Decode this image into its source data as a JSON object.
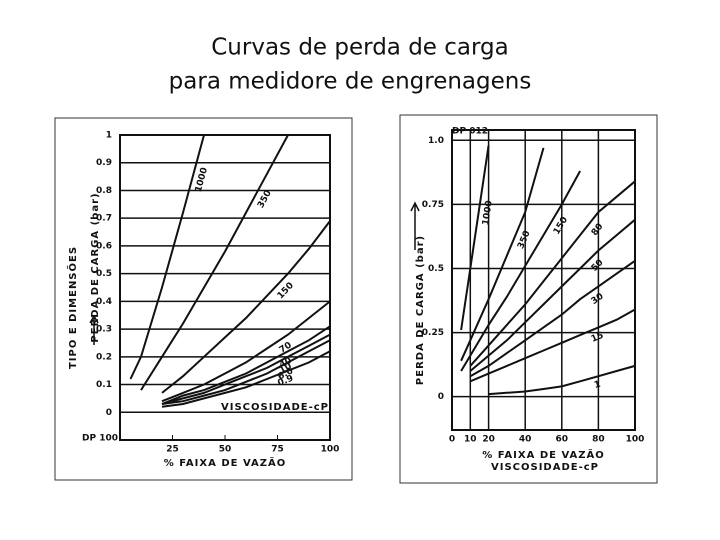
{
  "slide": {
    "title_lines": [
      "Curvas de perda de carga",
      "para medidore de engrenagens"
    ]
  },
  "chart_data": [
    {
      "type": "line",
      "title": "DP 100",
      "side_label": "TIPO E DIMENSÕES",
      "ylabel": "PERDA DE CARGA (bar)",
      "xlabel": "% FAIXA DE VAZÃO",
      "note": "VISCOSIDADE-cP",
      "color": "#111111",
      "grid": true,
      "xlim": [
        0,
        100
      ],
      "xticks": [
        25,
        50,
        75,
        100
      ],
      "ylim": [
        -0.1,
        1
      ],
      "yticks": [
        0,
        0.1,
        0.2,
        0.3,
        0.4,
        0.5,
        0.6,
        0.7,
        0.8,
        0.9,
        1
      ],
      "x": [
        5,
        10,
        20,
        30,
        40,
        50,
        60,
        70,
        80,
        90,
        100
      ],
      "series": [
        {
          "name": "1000",
          "values": [
            0.12,
            0.2,
            0.45,
            0.72,
            1.0,
            null,
            null,
            null,
            null,
            null,
            null
          ]
        },
        {
          "name": "350",
          "values": [
            null,
            0.08,
            0.2,
            0.32,
            0.45,
            0.58,
            0.72,
            0.86,
            1.0,
            null,
            null
          ]
        },
        {
          "name": "150",
          "values": [
            null,
            null,
            0.07,
            0.13,
            0.2,
            0.27,
            0.34,
            0.42,
            0.5,
            0.59,
            0.69
          ]
        },
        {
          "name": "70",
          "values": [
            null,
            null,
            0.04,
            0.07,
            0.1,
            0.14,
            0.18,
            0.23,
            0.28,
            0.34,
            0.4
          ]
        },
        {
          "name": "40",
          "values": [
            null,
            null,
            0.03,
            0.06,
            0.08,
            0.11,
            0.14,
            0.18,
            0.22,
            0.26,
            0.31
          ]
        },
        {
          "name": "10",
          "values": [
            null,
            null,
            0.03,
            0.05,
            0.07,
            0.1,
            0.13,
            0.16,
            0.2,
            0.24,
            0.28
          ]
        },
        {
          "name": "6.0",
          "values": [
            null,
            null,
            0.03,
            0.04,
            0.06,
            0.08,
            0.11,
            0.14,
            0.18,
            0.22,
            0.26
          ]
        },
        {
          "name": "0.9",
          "values": [
            null,
            null,
            0.02,
            0.03,
            0.05,
            0.07,
            0.09,
            0.12,
            0.15,
            0.18,
            0.22
          ]
        }
      ]
    },
    {
      "type": "line",
      "title": "DP 012",
      "ylabel": "PERDA DE CARGA (bar)",
      "xlabel": "% FAIXA DE VAZÃO",
      "note": "VISCOSIDADE-cP",
      "color": "#111111",
      "grid": true,
      "xlim": [
        0,
        100
      ],
      "xticks": [
        0,
        10,
        20,
        40,
        60,
        80,
        100
      ],
      "ylim": [
        -0.13,
        1.04
      ],
      "yticks": [
        0,
        0.25,
        0.5,
        0.75,
        {
          "value": 1,
          "label": "1.0"
        }
      ],
      "x": [
        5,
        10,
        20,
        30,
        40,
        50,
        60,
        70,
        80,
        90,
        100
      ],
      "series": [
        {
          "name": "1000",
          "values": [
            0.26,
            0.5,
            0.98,
            null,
            null,
            null,
            null,
            null,
            null,
            null,
            null
          ]
        },
        {
          "name": "350",
          "values": [
            0.14,
            0.22,
            0.38,
            0.55,
            0.72,
            0.97,
            null,
            null,
            null,
            null,
            null
          ]
        },
        {
          "name": "150",
          "values": [
            0.1,
            0.16,
            0.28,
            0.39,
            0.51,
            0.63,
            0.75,
            0.88,
            null,
            null,
            null
          ]
        },
        {
          "name": "80",
          "values": [
            null,
            0.12,
            0.2,
            0.28,
            0.36,
            0.45,
            0.54,
            0.63,
            0.72,
            0.78,
            0.84
          ]
        },
        {
          "name": "50",
          "values": [
            null,
            0.1,
            0.16,
            0.22,
            0.29,
            0.36,
            0.43,
            0.5,
            0.57,
            0.63,
            0.69
          ]
        },
        {
          "name": "30",
          "values": [
            null,
            0.08,
            0.12,
            0.17,
            0.22,
            0.27,
            0.32,
            0.38,
            0.43,
            0.48,
            0.53
          ]
        },
        {
          "name": "15",
          "values": [
            null,
            0.06,
            0.09,
            0.12,
            0.15,
            0.18,
            0.21,
            0.24,
            0.27,
            0.3,
            0.34
          ]
        },
        {
          "name": "1",
          "values": [
            null,
            null,
            0.01,
            0.015,
            0.02,
            0.03,
            0.04,
            0.06,
            0.08,
            0.1,
            0.12
          ]
        }
      ]
    }
  ]
}
